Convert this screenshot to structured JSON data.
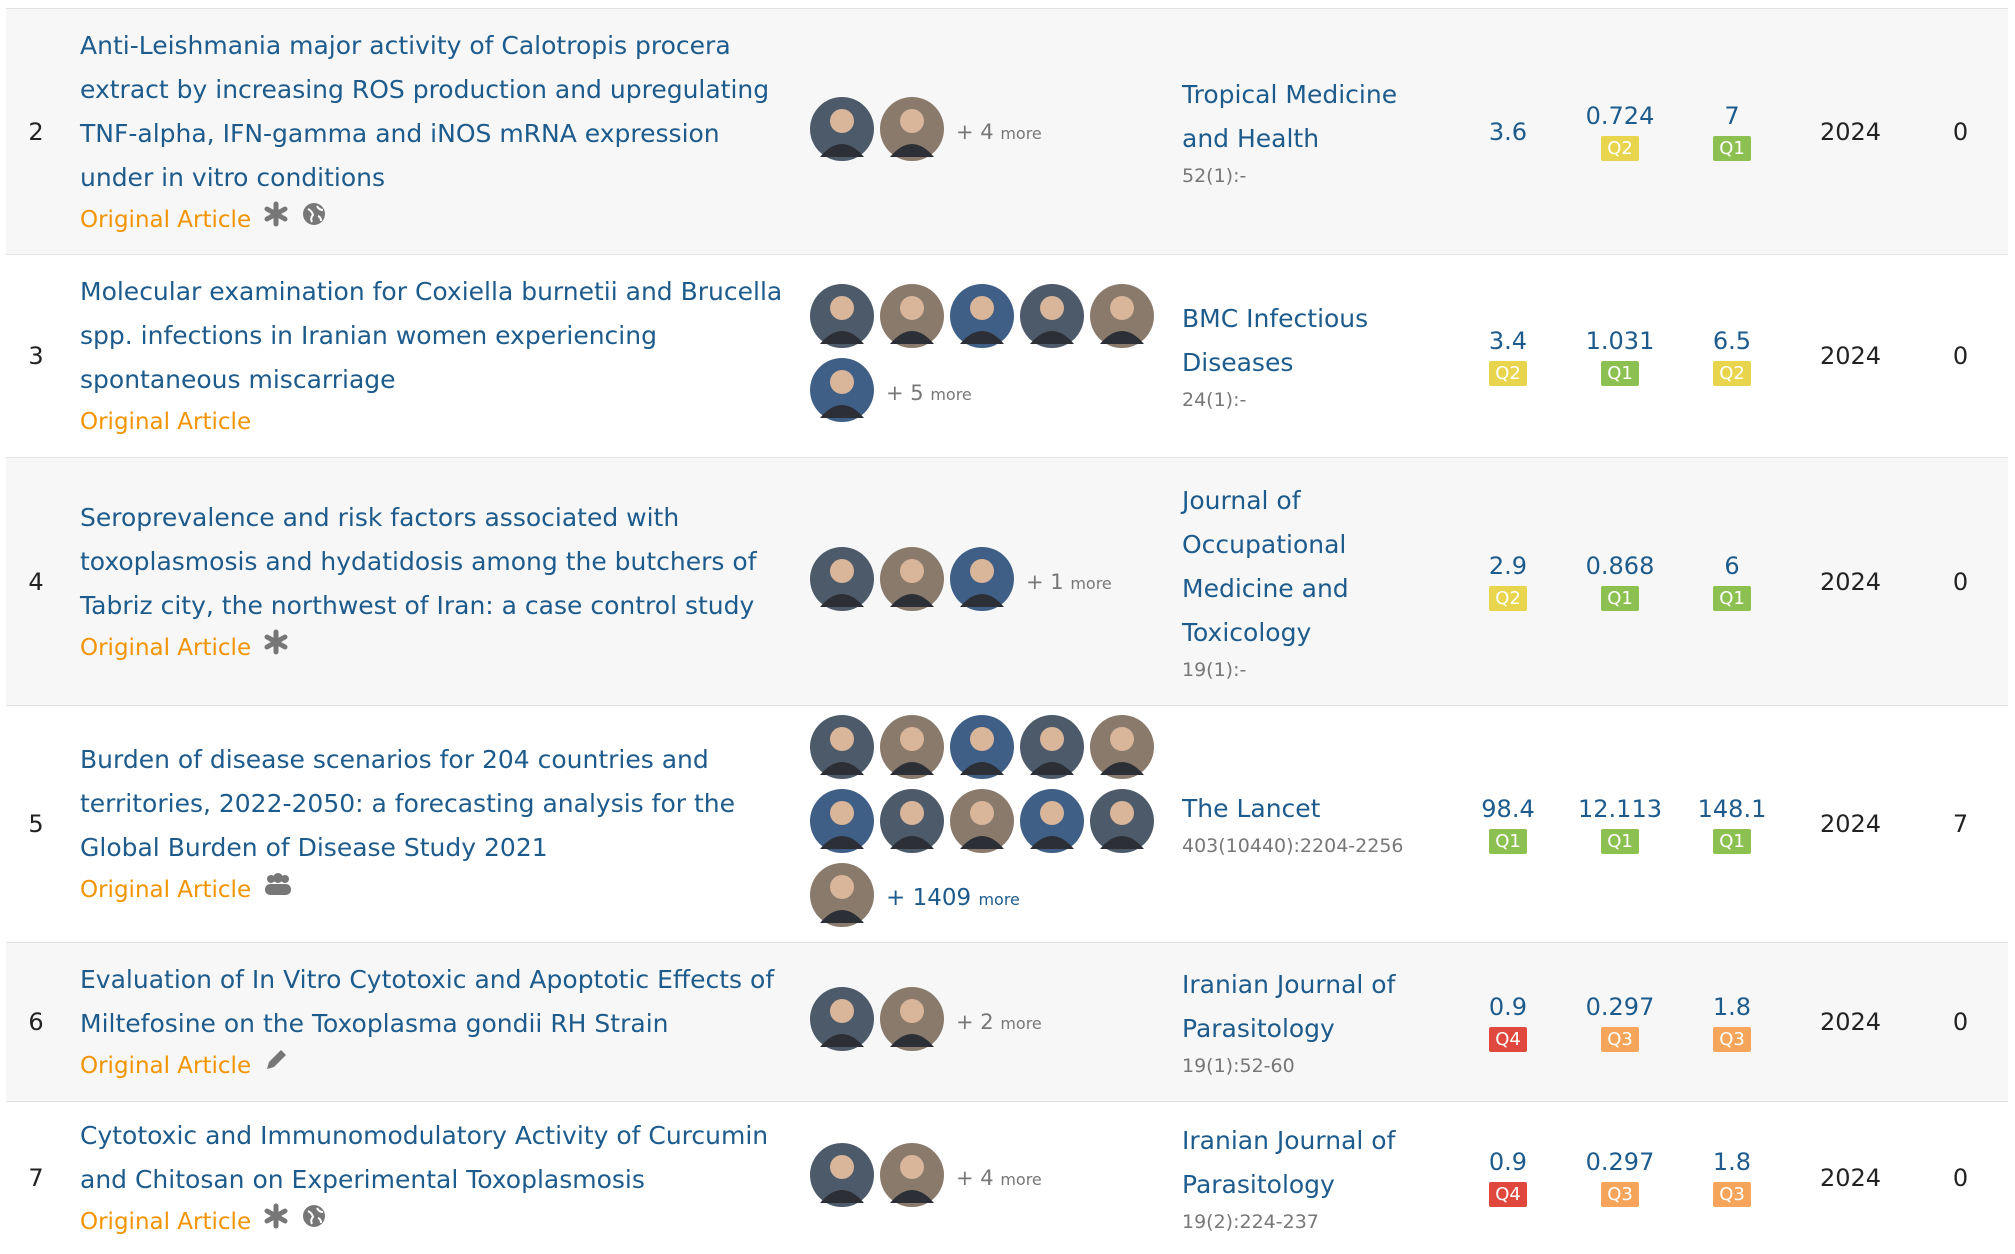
{
  "quartile_colors": {
    "Q1": "#8cc152",
    "Q2": "#e8d44d",
    "Q3": "#f6a55a",
    "Q4": "#e0483e"
  },
  "rows": [
    {
      "index": "2",
      "title": "Anti-Leishmania major activity of Calotropis procera extract by increasing ROS production and upregulating TNF-alpha, IFN-gamma and iNOS mRNA expression under in vitro conditions",
      "type": "Original Article",
      "more_count": "+ 4",
      "more_label": "more",
      "journal": "Tropical Medicine and Health",
      "volume": "52(1):-",
      "metrics": [
        {
          "value": "3.6",
          "quartile": null
        },
        {
          "value": "0.724",
          "quartile": "Q2"
        },
        {
          "value": "7",
          "quartile": "Q1"
        }
      ],
      "year": "2024",
      "citations": "0"
    },
    {
      "index": "3",
      "title": "Molecular examination for Coxiella burnetii and Brucella spp. infections in Iranian women experiencing spontaneous miscarriage",
      "type": "Original Article",
      "more_count": "+ 5",
      "more_label": "more",
      "journal": "BMC Infectious Diseases",
      "volume": "24(1):-",
      "metrics": [
        {
          "value": "3.4",
          "quartile": "Q2"
        },
        {
          "value": "1.031",
          "quartile": "Q1"
        },
        {
          "value": "6.5",
          "quartile": "Q2"
        }
      ],
      "year": "2024",
      "citations": "0"
    },
    {
      "index": "4",
      "title": "Seroprevalence and risk factors associated with toxoplasmosis and hydatidosis among the butchers of Tabriz city, the northwest of Iran: a case control study",
      "type": "Original Article",
      "more_count": "+ 1",
      "more_label": "more",
      "journal": "Journal of Occupational Medicine and Toxicology",
      "volume": "19(1):-",
      "metrics": [
        {
          "value": "2.9",
          "quartile": "Q2"
        },
        {
          "value": "0.868",
          "quartile": "Q1"
        },
        {
          "value": "6",
          "quartile": "Q1"
        }
      ],
      "year": "2024",
      "citations": "0"
    },
    {
      "index": "5",
      "title": "Burden of disease scenarios for 204 countries and territories, 2022-2050: a forecasting analysis for the Global Burden of Disease Study 2021",
      "type": "Original Article",
      "more_count": "+ 1409",
      "more_label": "more",
      "journal": "The Lancet",
      "volume": "403(10440):2204-2256",
      "metrics": [
        {
          "value": "98.4",
          "quartile": "Q1"
        },
        {
          "value": "12.113",
          "quartile": "Q1"
        },
        {
          "value": "148.1",
          "quartile": "Q1"
        }
      ],
      "year": "2024",
      "citations": "7"
    },
    {
      "index": "6",
      "title": "Evaluation of In Vitro Cytotoxic and Apoptotic Effects of Miltefosine on the Toxoplasma gondii RH Strain",
      "type": "Original Article",
      "more_count": "+ 2",
      "more_label": "more",
      "journal": "Iranian Journal of Parasitology",
      "volume": "19(1):52-60",
      "metrics": [
        {
          "value": "0.9",
          "quartile": "Q4"
        },
        {
          "value": "0.297",
          "quartile": "Q3"
        },
        {
          "value": "1.8",
          "quartile": "Q3"
        }
      ],
      "year": "2024",
      "citations": "0"
    },
    {
      "index": "7",
      "title": "Cytotoxic and Immunomodulatory Activity of Curcumin and Chitosan on Experimental Toxoplasmosis",
      "type": "Original Article",
      "more_count": "+ 4",
      "more_label": "more",
      "journal": "Iranian Journal of Parasitology",
      "volume": "19(2):224-237",
      "metrics": [
        {
          "value": "0.9",
          "quartile": "Q4"
        },
        {
          "value": "0.297",
          "quartile": "Q3"
        },
        {
          "value": "1.8",
          "quartile": "Q3"
        }
      ],
      "year": "2024",
      "citations": "0"
    }
  ]
}
